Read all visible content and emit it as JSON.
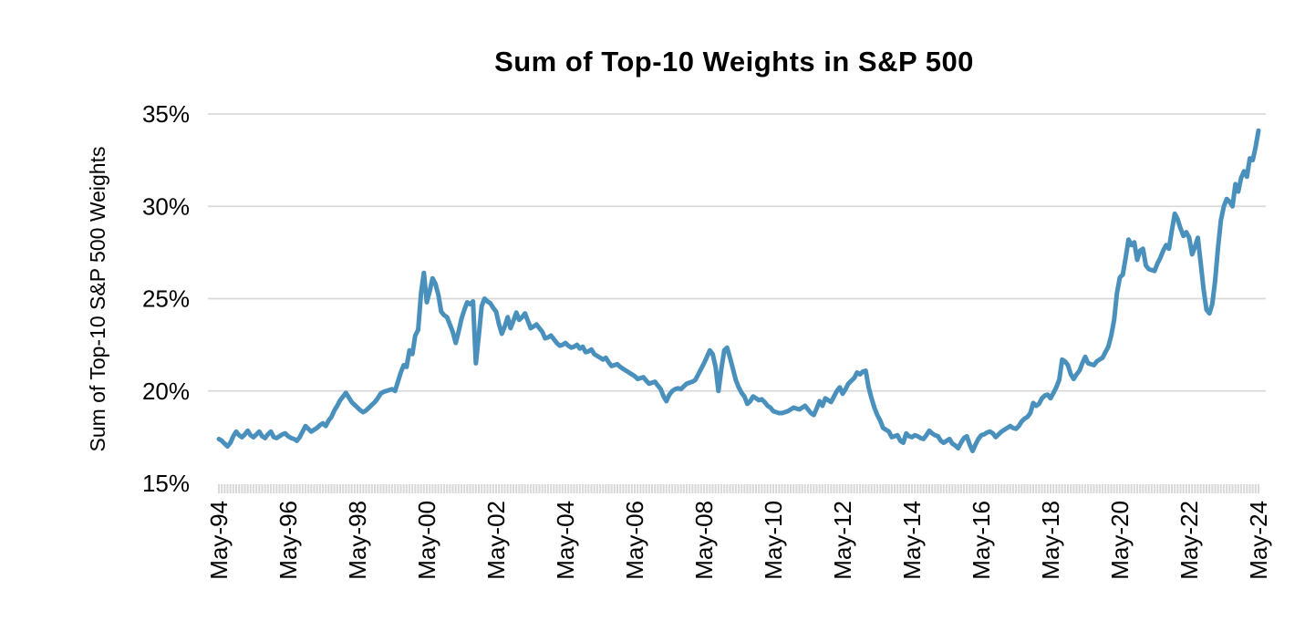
{
  "page": {
    "background": "#ffffff"
  },
  "chart": {
    "title": "Sum of Top-10 Weights in S&P 500",
    "y_axis_label": "Sum of Top-10 S&P 500 Weights",
    "line_color": "#4A90BC",
    "gridline_color": "#D9D9D9",
    "tick_band_color": "#D9D9D9",
    "text_color": "#000000"
  },
  "chart_data": {
    "type": "line",
    "title": "Sum of Top-10 Weights in S&P 500",
    "xlabel": "",
    "ylabel": "Sum of Top-10 S&P 500 Weights",
    "ylim": [
      15,
      35
    ],
    "y_unit": "%",
    "grid": "horizontal",
    "legend": "none",
    "x_start": "May-1994",
    "x_end": "May-2024",
    "x_interval": "monthly",
    "y_ticks": [
      35,
      30,
      25,
      20,
      15
    ],
    "y_tick_labels": [
      "35%",
      "30%",
      "25%",
      "20%",
      "15%"
    ],
    "x_tick_every_n_months": 24,
    "x_tick_labels": [
      "May-94",
      "May-96",
      "May-98",
      "May-00",
      "May-02",
      "May-04",
      "May-06",
      "May-08",
      "May-10",
      "May-12",
      "May-14",
      "May-16",
      "May-18",
      "May-20",
      "May-22",
      "May-24"
    ],
    "series": [
      {
        "name": "Sum of Top-10 S&P 500 Weights",
        "values": [
          17.4,
          17.3,
          17.15,
          17.0,
          17.2,
          17.55,
          17.8,
          17.6,
          17.5,
          17.65,
          17.85,
          17.6,
          17.5,
          17.65,
          17.8,
          17.55,
          17.45,
          17.65,
          17.8,
          17.5,
          17.45,
          17.55,
          17.65,
          17.7,
          17.55,
          17.45,
          17.4,
          17.3,
          17.5,
          17.8,
          18.1,
          17.95,
          17.8,
          17.9,
          18.0,
          18.15,
          18.25,
          18.1,
          18.4,
          18.6,
          18.95,
          19.2,
          19.5,
          19.7,
          19.9,
          19.65,
          19.4,
          19.25,
          19.1,
          18.95,
          18.85,
          18.95,
          19.1,
          19.25,
          19.4,
          19.6,
          19.85,
          19.95,
          20.0,
          20.05,
          20.1,
          20.0,
          20.5,
          21.0,
          21.4,
          21.3,
          22.2,
          22.0,
          23.0,
          23.3,
          25.3,
          26.4,
          24.8,
          25.4,
          26.1,
          25.8,
          25.2,
          24.3,
          24.1,
          24.0,
          23.6,
          23.2,
          22.6,
          23.2,
          23.9,
          24.4,
          24.8,
          24.7,
          24.85,
          21.5,
          23.0,
          24.6,
          25.0,
          24.85,
          24.75,
          24.5,
          24.3,
          23.6,
          23.1,
          23.5,
          24.0,
          23.4,
          23.8,
          24.25,
          23.85,
          24.0,
          24.2,
          23.8,
          23.4,
          23.5,
          23.6,
          23.4,
          23.2,
          22.85,
          22.9,
          23.0,
          22.8,
          22.6,
          22.45,
          22.5,
          22.6,
          22.45,
          22.35,
          22.4,
          22.5,
          22.3,
          22.4,
          22.1,
          22.15,
          22.25,
          22.0,
          21.9,
          21.8,
          21.7,
          21.8,
          21.55,
          21.35,
          21.4,
          21.45,
          21.3,
          21.2,
          21.1,
          21.0,
          20.9,
          20.8,
          20.65,
          20.7,
          20.75,
          20.55,
          20.4,
          20.45,
          20.5,
          20.3,
          20.1,
          19.7,
          19.45,
          19.8,
          20.0,
          20.1,
          20.15,
          20.1,
          20.25,
          20.4,
          20.45,
          20.5,
          20.6,
          20.9,
          21.2,
          21.5,
          21.85,
          22.2,
          22.0,
          21.3,
          20.0,
          21.2,
          22.2,
          22.35,
          21.8,
          21.2,
          20.6,
          20.2,
          19.9,
          19.7,
          19.3,
          19.45,
          19.7,
          19.6,
          19.5,
          19.55,
          19.4,
          19.2,
          19.1,
          18.9,
          18.85,
          18.8,
          18.8,
          18.85,
          18.9,
          19.0,
          19.1,
          19.05,
          19.0,
          19.1,
          19.2,
          19.0,
          18.8,
          18.7,
          19.05,
          19.45,
          19.2,
          19.6,
          19.5,
          19.4,
          19.7,
          20.0,
          20.2,
          19.85,
          20.1,
          20.4,
          20.55,
          20.7,
          21.0,
          20.9,
          21.05,
          21.1,
          20.2,
          19.6,
          19.1,
          18.7,
          18.4,
          18.0,
          17.9,
          17.8,
          17.5,
          17.55,
          17.6,
          17.3,
          17.2,
          17.7,
          17.55,
          17.5,
          17.6,
          17.55,
          17.45,
          17.4,
          17.6,
          17.85,
          17.7,
          17.6,
          17.55,
          17.3,
          17.2,
          17.3,
          17.4,
          17.15,
          17.05,
          16.9,
          17.2,
          17.45,
          17.55,
          17.1,
          16.75,
          17.1,
          17.4,
          17.6,
          17.65,
          17.75,
          17.8,
          17.7,
          17.5,
          17.65,
          17.8,
          17.9,
          18.0,
          18.1,
          18.0,
          17.95,
          18.1,
          18.35,
          18.5,
          18.6,
          18.8,
          19.35,
          19.2,
          19.3,
          19.6,
          19.75,
          19.8,
          19.6,
          19.9,
          20.2,
          20.6,
          21.7,
          21.6,
          21.4,
          20.9,
          20.65,
          20.9,
          21.1,
          21.5,
          21.85,
          21.5,
          21.45,
          21.4,
          21.6,
          21.7,
          21.8,
          22.1,
          22.4,
          23.0,
          23.85,
          25.3,
          26.15,
          26.3,
          27.2,
          28.2,
          27.9,
          28.05,
          27.1,
          27.6,
          27.7,
          26.8,
          26.6,
          26.55,
          26.5,
          26.9,
          27.2,
          27.6,
          27.9,
          27.7,
          28.7,
          29.6,
          29.3,
          28.8,
          28.4,
          28.6,
          28.3,
          27.4,
          27.8,
          28.3,
          26.9,
          25.5,
          24.4,
          24.2,
          24.7,
          26.0,
          27.8,
          29.25,
          30.0,
          30.4,
          30.25,
          30.0,
          31.2,
          30.8,
          31.55,
          31.9,
          31.6,
          32.6,
          32.5,
          33.2,
          34.1
        ]
      }
    ]
  }
}
